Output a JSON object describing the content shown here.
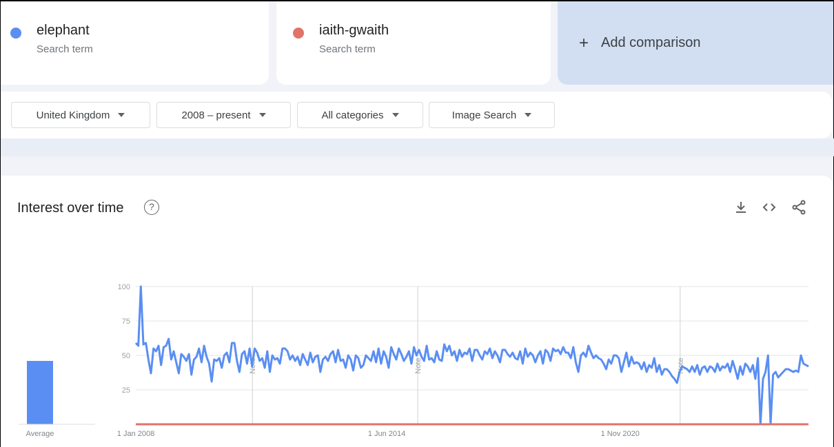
{
  "terms": [
    {
      "name": "elephant",
      "subtitle": "Search term",
      "color": "#5a8ef2"
    },
    {
      "name": "iaith-gwaith",
      "subtitle": "Search term",
      "color": "#e1736a"
    }
  ],
  "add_comparison": {
    "label": "Add comparison",
    "icon": "plus-icon"
  },
  "filters": [
    {
      "label": "United Kingdom"
    },
    {
      "label": "2008 – present"
    },
    {
      "label": "All categories"
    },
    {
      "label": "Image Search"
    }
  ],
  "chart_card": {
    "title": "Interest over time",
    "help_icon": "?",
    "actions": [
      "download-icon",
      "embed-icon",
      "share-icon"
    ]
  },
  "chart_data": {
    "type": "line",
    "average_bar": {
      "label": "Average",
      "values": [
        {
          "series": "elephant",
          "value": 46
        }
      ]
    },
    "ylim": [
      0,
      100
    ],
    "yticks": [
      "100",
      "75",
      "50",
      "25"
    ],
    "xtick_labels": [
      "1 Jan 2008",
      "1 Jun 2014",
      "1 Nov 2020"
    ],
    "notes": [
      {
        "label": "Note",
        "date": "2011-01"
      },
      {
        "label": "Note",
        "date": "2015-04"
      },
      {
        "label": "Note",
        "date": "2022-01"
      }
    ],
    "series": [
      {
        "name": "elephant",
        "color": "#5a8ef2",
        "values": [
          59,
          57,
          100,
          58,
          59,
          47,
          37,
          55,
          53,
          57,
          43,
          56,
          57,
          62,
          47,
          53,
          45,
          37,
          51,
          49,
          46,
          51,
          36,
          47,
          49,
          55,
          45,
          57,
          49,
          44,
          31,
          47,
          46,
          48,
          41,
          50,
          52,
          45,
          59,
          59,
          46,
          38,
          51,
          53,
          44,
          55,
          42,
          55,
          52,
          46,
          48,
          41,
          53,
          38,
          50,
          47,
          48,
          44,
          55,
          55,
          53,
          47,
          50,
          46,
          49,
          43,
          51,
          47,
          43,
          52,
          45,
          49,
          50,
          38,
          47,
          49,
          46,
          51,
          53,
          45,
          54,
          46,
          47,
          41,
          50,
          47,
          39,
          50,
          48,
          41,
          43,
          50,
          48,
          46,
          53,
          45,
          55,
          44,
          53,
          49,
          41,
          56,
          51,
          47,
          55,
          51,
          46,
          49,
          53,
          44,
          56,
          50,
          54,
          49,
          46,
          57,
          47,
          48,
          45,
          53,
          47,
          46,
          58,
          53,
          57,
          50,
          53,
          46,
          54,
          49,
          52,
          51,
          55,
          46,
          54,
          54,
          50,
          47,
          53,
          51,
          55,
          48,
          53,
          50,
          45,
          54,
          54,
          51,
          49,
          52,
          48,
          47,
          53,
          44,
          55,
          49,
          52,
          50,
          45,
          50,
          53,
          44,
          54,
          52,
          46,
          55,
          53,
          54,
          51,
          56,
          52,
          52,
          48,
          56,
          45,
          38,
          50,
          52,
          49,
          57,
          52,
          48,
          50,
          48,
          47,
          44,
          40,
          47,
          44,
          50,
          50,
          48,
          38,
          45,
          52,
          42,
          49,
          44,
          45,
          44,
          40,
          45,
          38,
          43,
          41,
          48,
          38,
          43,
          36,
          40,
          40,
          38,
          35,
          33,
          30,
          38,
          42,
          41,
          40,
          38,
          42,
          38,
          43,
          36,
          41,
          42,
          38,
          42,
          41,
          38,
          44,
          39,
          42,
          41,
          44,
          38,
          46,
          40,
          33,
          42,
          36,
          44,
          42,
          38,
          43,
          33,
          48,
          0,
          33,
          38,
          50,
          0,
          36,
          38,
          34,
          36,
          38,
          40,
          40,
          39,
          38,
          39,
          38,
          50,
          44,
          43,
          42
        ]
      },
      {
        "name": "iaith-gwaith",
        "color": "#e1736a",
        "values": [
          0,
          0
        ]
      }
    ]
  }
}
